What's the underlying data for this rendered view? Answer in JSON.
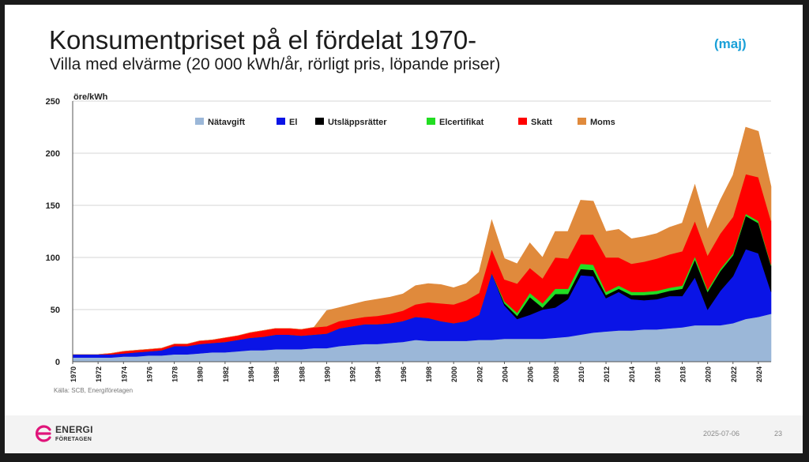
{
  "slide": {
    "title": "Konsumentpriset på el fördelat 1970-",
    "subtitle": "Villa med elvärme (20 000 kWh/år, rörligt pris, löpande priser)",
    "badge": "(maj)",
    "source": "Källa: SCB, Energiföretagen",
    "date": "2025-07-06",
    "page_number": "23",
    "logo_line1": "ENERGI",
    "logo_line2": "FÖRETAGEN",
    "colors": {
      "badge": "#1aa0d8",
      "logo": "#e0147a"
    }
  },
  "chart_data": {
    "type": "area",
    "stacked": true,
    "ylabel": "öre/kWh",
    "xlabel": "",
    "ylim": [
      0,
      250
    ],
    "yticks": [
      0,
      50,
      100,
      150,
      200,
      250
    ],
    "xlim": [
      1970,
      2025
    ],
    "xtick_labels": [
      "1970",
      "1972",
      "1974",
      "1976",
      "1978",
      "1980",
      "1982",
      "1984",
      "1986",
      "1988",
      "1990",
      "1992",
      "1994",
      "1996",
      "1998",
      "2000",
      "2002",
      "2004",
      "2006",
      "2008",
      "2010",
      "2012",
      "2014",
      "2016",
      "2018",
      "2020",
      "2022",
      "2024"
    ],
    "grid": "horizontal",
    "legend_position": "top",
    "x": [
      1970,
      1971,
      1972,
      1973,
      1974,
      1975,
      1976,
      1977,
      1978,
      1979,
      1980,
      1981,
      1982,
      1983,
      1984,
      1985,
      1986,
      1987,
      1988,
      1989,
      1990,
      1991,
      1992,
      1993,
      1994,
      1995,
      1996,
      1997,
      1998,
      1999,
      2000,
      2001,
      2002,
      2003,
      2004,
      2005,
      2006,
      2007,
      2008,
      2009,
      2010,
      2011,
      2012,
      2013,
      2014,
      2015,
      2016,
      2017,
      2018,
      2019,
      2020,
      2021,
      2022,
      2023,
      2024,
      2025
    ],
    "series": [
      {
        "name": "Nätavgift",
        "color": "#9bb7d8",
        "values": [
          4,
          4,
          4,
          4,
          5,
          5,
          6,
          6,
          7,
          7,
          8,
          9,
          9,
          10,
          11,
          11,
          12,
          12,
          12,
          13,
          13,
          15,
          16,
          17,
          17,
          18,
          19,
          21,
          20,
          20,
          20,
          20,
          21,
          21,
          22,
          22,
          22,
          22,
          23,
          24,
          26,
          28,
          29,
          30,
          30,
          31,
          31,
          32,
          33,
          35,
          35,
          35,
          37,
          41,
          43,
          46
        ]
      },
      {
        "name": "El",
        "color": "#0a14e6",
        "values": [
          3,
          3,
          3,
          3,
          3,
          4,
          4,
          5,
          8,
          8,
          9,
          9,
          10,
          11,
          12,
          13,
          14,
          14,
          13,
          13,
          14,
          17,
          18,
          19,
          19,
          19,
          20,
          22,
          22,
          19,
          17,
          19,
          24,
          64,
          32,
          19,
          23,
          28,
          29,
          36,
          57,
          54,
          32,
          37,
          30,
          28,
          29,
          31,
          30,
          46,
          15,
          33,
          45,
          67,
          61,
          21
        ]
      },
      {
        "name": "Utsläppsrätter",
        "color": "#000000",
        "values": [
          0,
          0,
          0,
          0,
          0,
          0,
          0,
          0,
          0,
          0,
          0,
          0,
          0,
          0,
          0,
          0,
          0,
          0,
          0,
          0,
          0,
          0,
          0,
          0,
          0,
          0,
          0,
          0,
          0,
          0,
          0,
          0,
          0,
          0,
          2,
          3,
          17,
          2,
          13,
          5,
          6,
          6,
          3,
          3,
          4,
          5,
          5,
          5,
          7,
          17,
          17,
          19,
          20,
          32,
          29,
          25
        ]
      },
      {
        "name": "Elcertifikat",
        "color": "#22dd22",
        "values": [
          0,
          0,
          0,
          0,
          0,
          0,
          0,
          0,
          0,
          0,
          0,
          0,
          0,
          0,
          0,
          0,
          0,
          0,
          0,
          0,
          0,
          0,
          0,
          0,
          0,
          0,
          0,
          0,
          0,
          0,
          0,
          0,
          0,
          0,
          2,
          3,
          4,
          4,
          5,
          5,
          5,
          5,
          3,
          3,
          3,
          3,
          3,
          3,
          3,
          3,
          2,
          2,
          2,
          2,
          2,
          1
        ]
      },
      {
        "name": "Skatt",
        "color": "#ff0000",
        "values": [
          0,
          0,
          0,
          1,
          2,
          2,
          2,
          2,
          2,
          2,
          3,
          3,
          4,
          4,
          5,
          6,
          6,
          6,
          6,
          7,
          7,
          7,
          7,
          7,
          8,
          9,
          10,
          12,
          15,
          17,
          18,
          20,
          21,
          23,
          21,
          28,
          24,
          24,
          30,
          29,
          28,
          29,
          33,
          27,
          27,
          29,
          31,
          32,
          33,
          34,
          33,
          34,
          35,
          38,
          42,
          42
        ]
      },
      {
        "name": "Moms",
        "color": "#e08a3c",
        "values": [
          0,
          0,
          0,
          0,
          0,
          0,
          0,
          0,
          0,
          0,
          0,
          0,
          0,
          0,
          0,
          0,
          0,
          0,
          0,
          0,
          15,
          13,
          14,
          15,
          16,
          16,
          16,
          18,
          18,
          18,
          16,
          16,
          20,
          28,
          20,
          19,
          24,
          20,
          25,
          26,
          33,
          32,
          25,
          27,
          24,
          24,
          24,
          26,
          27,
          35,
          25,
          32,
          40,
          45,
          44,
          33
        ]
      }
    ]
  }
}
